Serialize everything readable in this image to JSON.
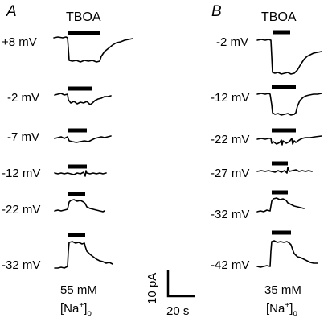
{
  "panels": [
    {
      "letter": "A",
      "drug_label": "TBOA",
      "condition_top": "55 mM",
      "condition_bottom_main": "[Na",
      "condition_bottom_sup": "+",
      "condition_bottom_end": "]",
      "condition_bottom_sub": "o",
      "voltages": [
        "+8 mV",
        "-2 mV",
        "-7 mV",
        "-12 mV",
        "-22 mV",
        "-32 mV"
      ]
    },
    {
      "letter": "B",
      "drug_label": "TBOA",
      "condition_top": "35 mM",
      "condition_bottom_main": "[Na",
      "condition_bottom_sup": "+",
      "condition_bottom_end": "]",
      "condition_bottom_sub": "o",
      "voltages": [
        "-2 mV",
        "-12 mV",
        "-22 mV",
        "-27 mV",
        "-32 mV",
        "-42 mV"
      ]
    }
  ],
  "scale_bar": {
    "current_label": "10 pA",
    "time_label": "20 s"
  }
}
